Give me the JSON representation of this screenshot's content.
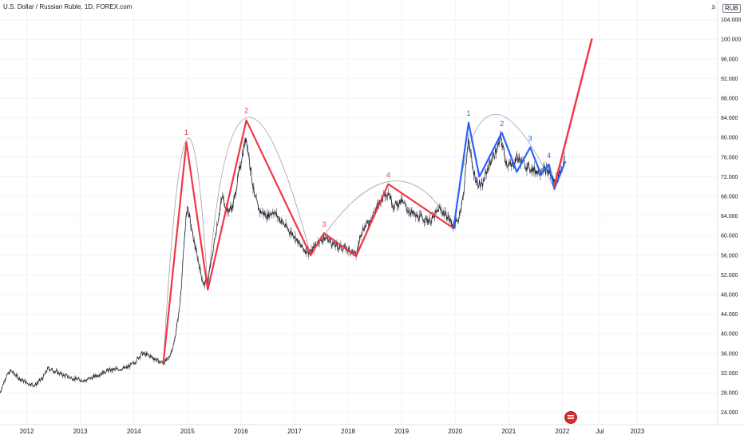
{
  "title": "U.S. Dollar / Russian Ruble, 1D, FOREX.com",
  "currency_prefix": "1i",
  "currency": "RUB",
  "colors": {
    "price": "#131722",
    "primary_wave": "#f23645",
    "secondary_wave": "#2962ff",
    "arc": "#a0a0a0"
  },
  "chart_data": {
    "type": "line",
    "y_ticks": [
      24,
      28,
      32,
      36,
      40,
      44,
      48,
      52,
      56,
      60,
      64,
      68,
      72,
      76,
      80,
      84,
      88,
      92,
      96,
      100,
      104
    ],
    "y_tick_labels": [
      "24.000",
      "28.000",
      "32.000",
      "36.000",
      "40.000",
      "44.000",
      "48.000",
      "52.000",
      "56.000",
      "60.000",
      "64.000",
      "68.000",
      "72.000",
      "76.000",
      "80.000",
      "84.000",
      "88.000",
      "92.000",
      "96.000",
      "100.000",
      "104.000"
    ],
    "ylim": [
      21.5,
      108
    ],
    "xlim": [
      2011.5,
      2024.9
    ],
    "x_ticks": [
      {
        "x": 2012.0,
        "label": "2012"
      },
      {
        "x": 2013.0,
        "label": "2013"
      },
      {
        "x": 2014.0,
        "label": "2014"
      },
      {
        "x": 2015.0,
        "label": "2015"
      },
      {
        "x": 2016.0,
        "label": "2016"
      },
      {
        "x": 2017.0,
        "label": "2017"
      },
      {
        "x": 2018.0,
        "label": "2018"
      },
      {
        "x": 2019.0,
        "label": "2019"
      },
      {
        "x": 2020.0,
        "label": "2020"
      },
      {
        "x": 2021.0,
        "label": "2021"
      },
      {
        "x": 2022.0,
        "label": "2022"
      },
      {
        "x": 2022.7,
        "label": "Jul"
      },
      {
        "x": 2023.4,
        "label": "2023"
      }
    ],
    "price": [
      [
        2011.5,
        28.0
      ],
      [
        2011.6,
        31.0
      ],
      [
        2011.7,
        32.5
      ],
      [
        2011.85,
        31.0
      ],
      [
        2012.0,
        30.0
      ],
      [
        2012.15,
        29.5
      ],
      [
        2012.3,
        31.0
      ],
      [
        2012.4,
        33.0
      ],
      [
        2012.5,
        32.5
      ],
      [
        2012.7,
        31.5
      ],
      [
        2012.9,
        30.8
      ],
      [
        2013.1,
        30.5
      ],
      [
        2013.3,
        31.5
      ],
      [
        2013.5,
        32.5
      ],
      [
        2013.7,
        32.8
      ],
      [
        2013.85,
        33.0
      ],
      [
        2014.0,
        34.0
      ],
      [
        2014.15,
        36.0
      ],
      [
        2014.3,
        35.5
      ],
      [
        2014.45,
        34.5
      ],
      [
        2014.55,
        34.0
      ],
      [
        2014.65,
        35.0
      ],
      [
        2014.75,
        38.0
      ],
      [
        2014.85,
        45.0
      ],
      [
        2014.9,
        52.0
      ],
      [
        2014.96,
        62.0
      ],
      [
        2015.0,
        66.0
      ],
      [
        2015.05,
        63.0
      ],
      [
        2015.1,
        60.0
      ],
      [
        2015.2,
        55.0
      ],
      [
        2015.3,
        50.0
      ],
      [
        2015.38,
        51.0
      ],
      [
        2015.45,
        55.0
      ],
      [
        2015.55,
        62.0
      ],
      [
        2015.65,
        68.0
      ],
      [
        2015.75,
        65.0
      ],
      [
        2015.85,
        66.0
      ],
      [
        2015.95,
        72.0
      ],
      [
        2016.05,
        78.0
      ],
      [
        2016.1,
        80.0
      ],
      [
        2016.15,
        76.0
      ],
      [
        2016.25,
        68.0
      ],
      [
        2016.35,
        65.0
      ],
      [
        2016.5,
        64.0
      ],
      [
        2016.6,
        65.0
      ],
      [
        2016.75,
        63.0
      ],
      [
        2016.9,
        61.0
      ],
      [
        2017.0,
        60.0
      ],
      [
        2017.1,
        58.0
      ],
      [
        2017.2,
        57.0
      ],
      [
        2017.3,
        56.5
      ],
      [
        2017.45,
        59.0
      ],
      [
        2017.6,
        59.5
      ],
      [
        2017.75,
        58.0
      ],
      [
        2017.9,
        57.5
      ],
      [
        2018.05,
        57.0
      ],
      [
        2018.15,
        56.0
      ],
      [
        2018.25,
        61.0
      ],
      [
        2018.4,
        63.0
      ],
      [
        2018.55,
        66.0
      ],
      [
        2018.65,
        68.0
      ],
      [
        2018.75,
        69.0
      ],
      [
        2018.85,
        66.0
      ],
      [
        2019.0,
        67.0
      ],
      [
        2019.1,
        65.5
      ],
      [
        2019.25,
        64.0
      ],
      [
        2019.4,
        63.5
      ],
      [
        2019.55,
        63.0
      ],
      [
        2019.7,
        65.5
      ],
      [
        2019.85,
        64.0
      ],
      [
        2019.97,
        62.0
      ],
      [
        2020.05,
        63.0
      ],
      [
        2020.15,
        68.0
      ],
      [
        2020.25,
        80.0
      ],
      [
        2020.32,
        74.0
      ],
      [
        2020.4,
        71.0
      ],
      [
        2020.5,
        70.0
      ],
      [
        2020.6,
        73.5
      ],
      [
        2020.7,
        76.0
      ],
      [
        2020.8,
        78.0
      ],
      [
        2020.85,
        80.0
      ],
      [
        2020.95,
        75.0
      ],
      [
        2021.05,
        74.0
      ],
      [
        2021.15,
        76.0
      ],
      [
        2021.25,
        75.0
      ],
      [
        2021.35,
        74.0
      ],
      [
        2021.45,
        73.5
      ],
      [
        2021.55,
        73.0
      ],
      [
        2021.65,
        73.5
      ],
      [
        2021.75,
        73.0
      ],
      [
        2021.85,
        71.0
      ],
      [
        2021.9,
        72.0
      ],
      [
        2022.0,
        74.0
      ],
      [
        2022.05,
        76.0
      ]
    ],
    "primary_wave": [
      [
        2014.55,
        34.0
      ],
      [
        2014.98,
        79.0
      ],
      [
        2015.38,
        49.0
      ],
      [
        2016.1,
        83.5
      ],
      [
        2017.3,
        56.0
      ],
      [
        2017.55,
        60.5
      ],
      [
        2018.15,
        55.8
      ],
      [
        2018.75,
        70.5
      ],
      [
        2019.97,
        61.5
      ]
    ],
    "primary_projection": [
      [
        2021.85,
        70.0
      ],
      [
        2022.55,
        100.0
      ]
    ],
    "secondary_wave": [
      [
        2019.97,
        61.5
      ],
      [
        2020.25,
        83.0
      ],
      [
        2020.45,
        72.0
      ],
      [
        2020.87,
        81.0
      ],
      [
        2021.15,
        73.0
      ],
      [
        2021.4,
        78.0
      ],
      [
        2021.6,
        72.5
      ],
      [
        2021.75,
        74.5
      ],
      [
        2021.85,
        69.5
      ],
      [
        2022.05,
        75.0
      ]
    ],
    "arcs": [
      {
        "from": [
          2014.55,
          34.0
        ],
        "to": [
          2015.38,
          49.0
        ],
        "peak": [
          2014.98,
          79.5
        ]
      },
      {
        "from": [
          2015.38,
          49.0
        ],
        "to": [
          2017.3,
          56.0
        ],
        "peak": [
          2016.1,
          84.0
        ]
      },
      {
        "from": [
          2017.3,
          56.0
        ],
        "to": [
          2019.97,
          61.5
        ],
        "peak": [
          2018.75,
          71.0
        ]
      },
      {
        "from": [
          2019.97,
          61.5
        ],
        "to": [
          2021.85,
          69.5
        ],
        "peak": [
          2020.65,
          84.5
        ]
      }
    ],
    "primary_labels": [
      {
        "text": "1",
        "x": 2014.98,
        "y": 80.5
      },
      {
        "text": "2",
        "x": 2016.1,
        "y": 85.0
      },
      {
        "text": "3",
        "x": 2017.55,
        "y": 61.8
      },
      {
        "text": "4",
        "x": 2018.75,
        "y": 71.8
      }
    ],
    "secondary_labels": [
      {
        "text": "1",
        "x": 2020.25,
        "y": 84.4
      },
      {
        "text": "2",
        "x": 2020.87,
        "y": 82.3
      },
      {
        "text": "3",
        "x": 2021.4,
        "y": 79.3
      },
      {
        "text": "4",
        "x": 2021.75,
        "y": 75.8
      }
    ]
  }
}
